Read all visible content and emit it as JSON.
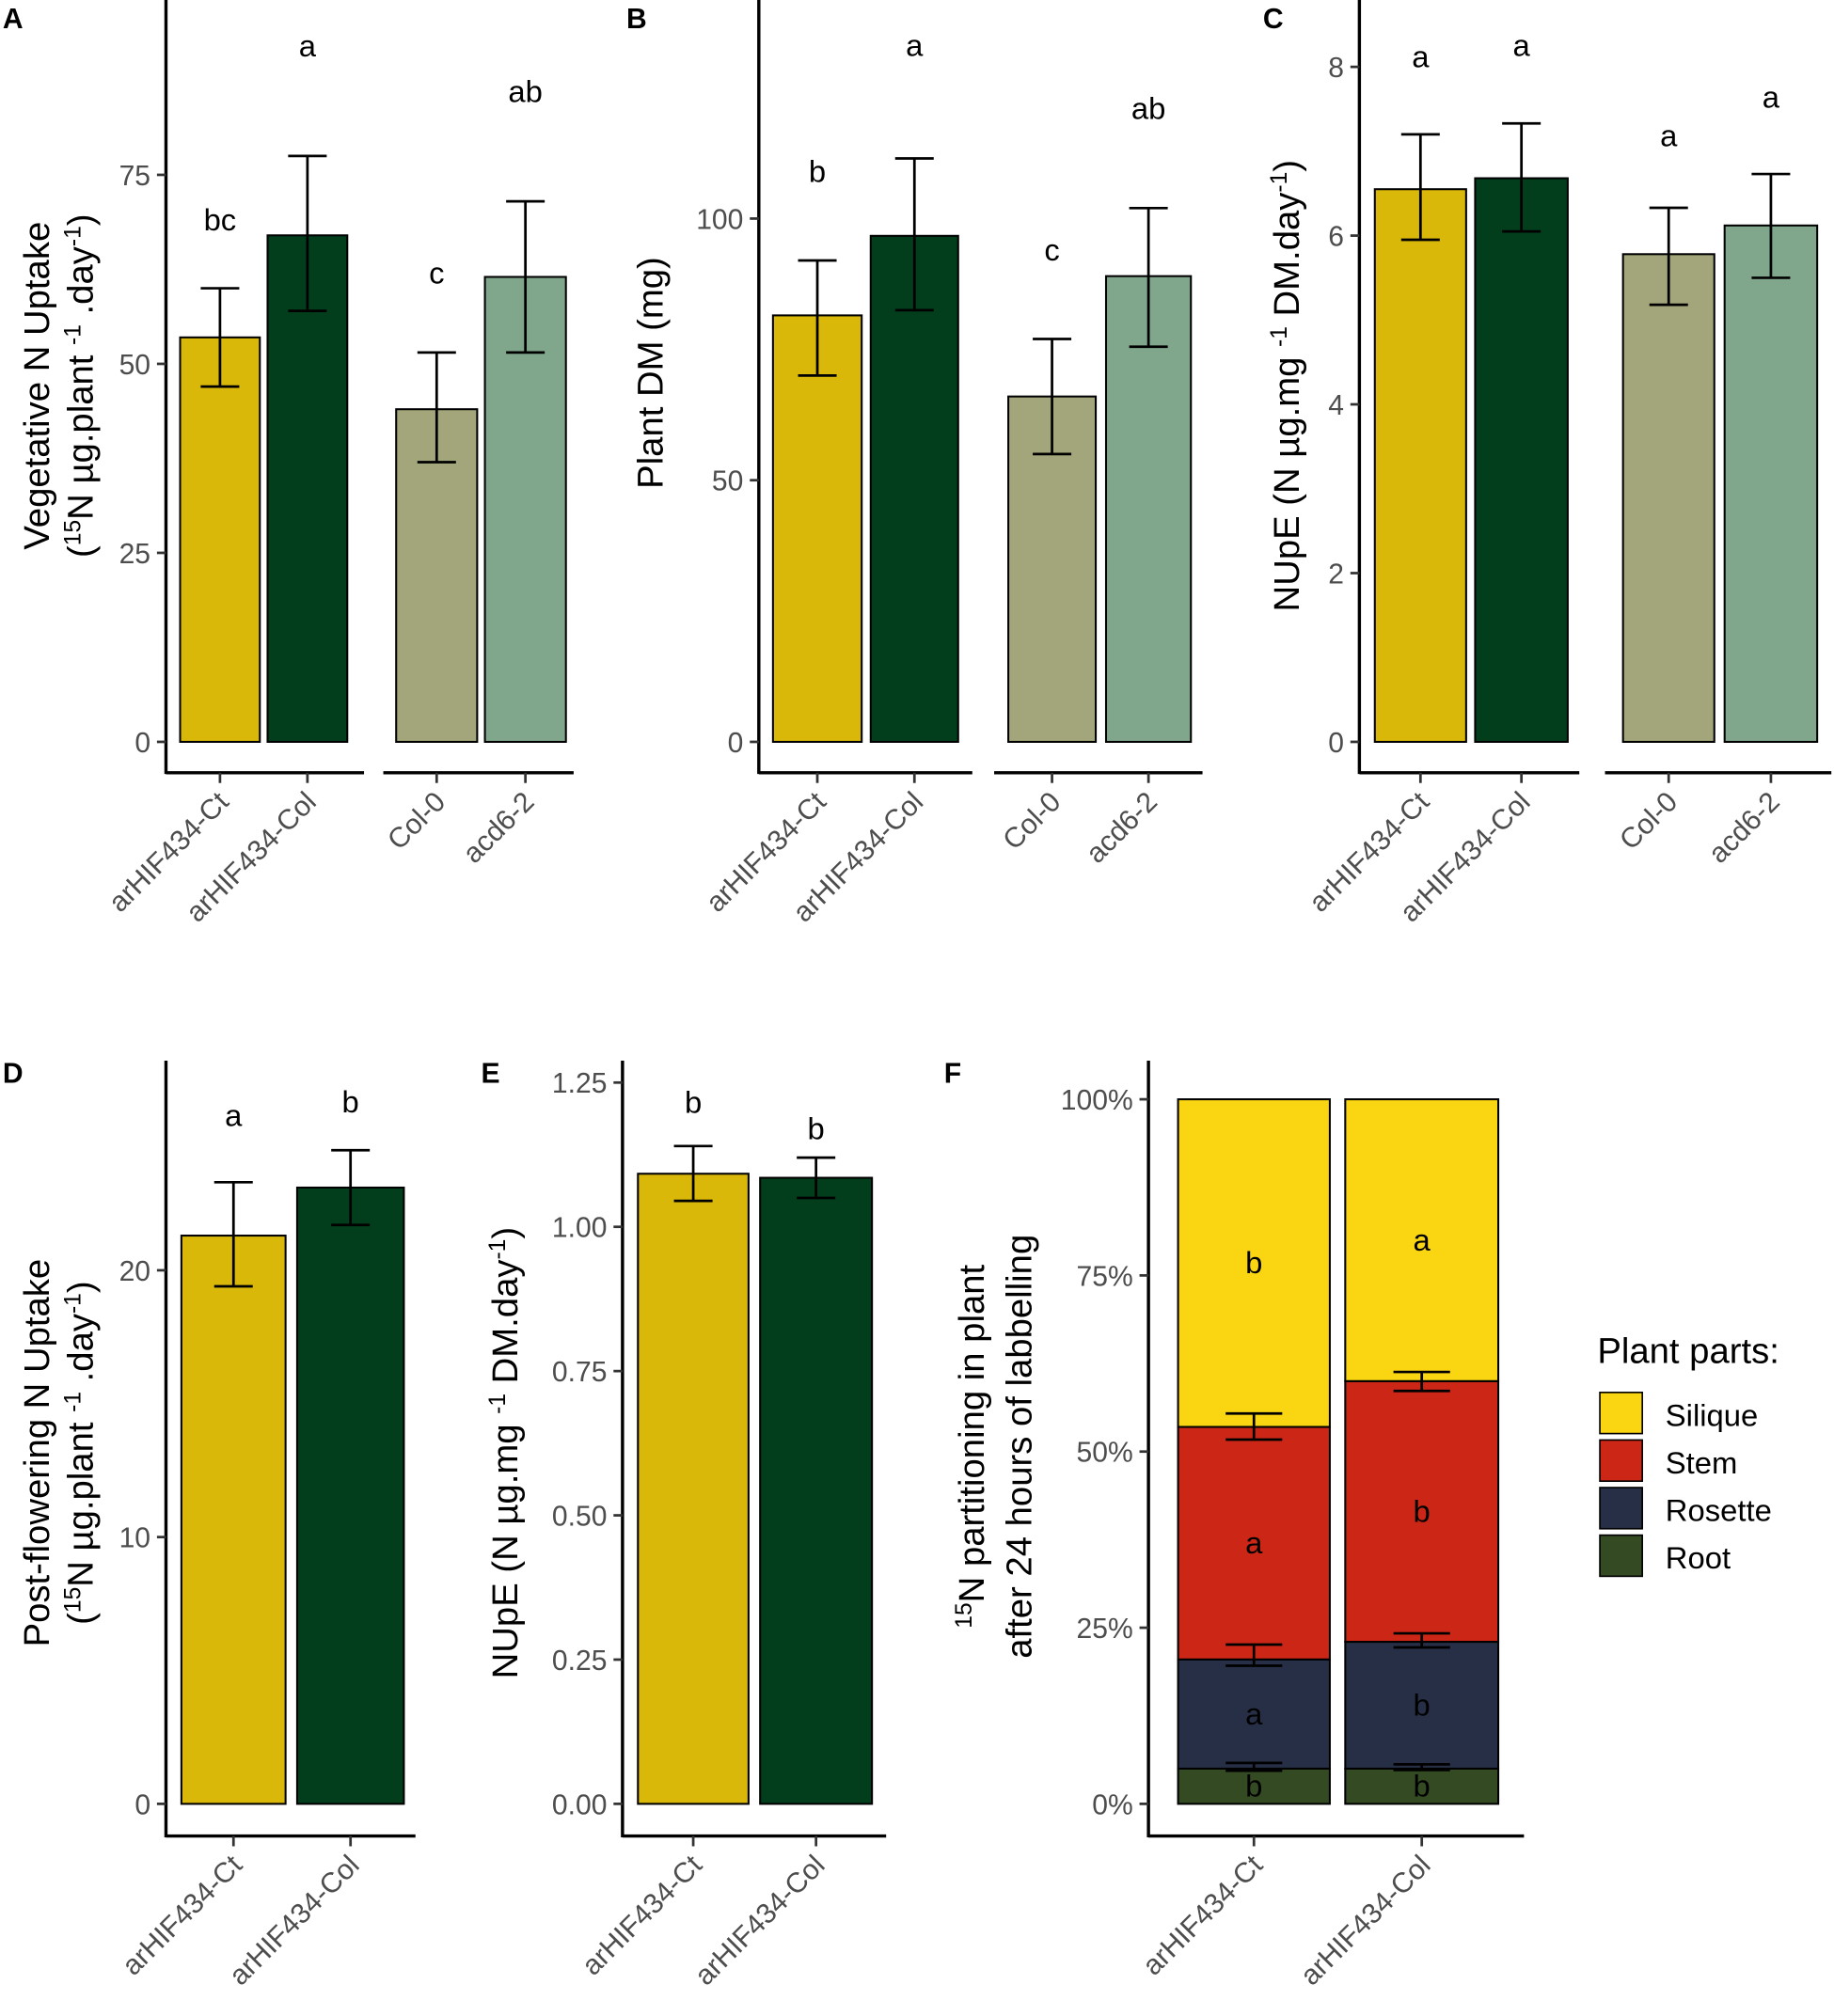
{
  "colors": {
    "arHIF434-Ct": "#D9B80A",
    "arHIF434-Col": "#023E1C",
    "Col-0": "#A3A57A",
    "acd6-2": "#80A78C"
  },
  "chart_data": [
    {
      "panel": "A",
      "type": "bar",
      "ylabel": [
        [
          {
            "t": "Vegetative N Uptake"
          }
        ],
        [
          {
            "t": "("
          },
          {
            "t": "15",
            "sup": true
          },
          {
            "t": "N µg.plant "
          },
          {
            "t": "-1",
            "sup": true
          },
          {
            "t": " .day"
          },
          {
            "t": "-1",
            "sup": true
          },
          {
            "t": ")"
          }
        ]
      ],
      "ylim": [
        0,
        98
      ],
      "yticks": [
        0,
        25,
        50,
        75
      ],
      "groups": [
        [
          {
            "category": "arHIF434-Ct",
            "value": 53.5,
            "err": [
              47,
              60
            ],
            "letter": "bc",
            "letter_y": 69
          },
          {
            "category": "arHIF434-Col",
            "value": 67,
            "err": [
              57,
              77.5
            ],
            "letter": "a",
            "letter_y": 92
          }
        ],
        [
          {
            "category": "Col-0",
            "value": 44,
            "err": [
              37,
              51.5
            ],
            "letter": "c",
            "letter_y": 62
          },
          {
            "category": "acd6-2",
            "value": 61.5,
            "err": [
              51.5,
              71.5
            ],
            "letter": "ab",
            "letter_y": 86
          }
        ]
      ]
    },
    {
      "panel": "B",
      "type": "bar",
      "ylabel": [
        [
          {
            "t": "Plant DM (mg)"
          }
        ]
      ],
      "ylim": [
        0,
        141
      ],
      "yticks": [
        0,
        50,
        100
      ],
      "groups": [
        [
          {
            "category": "arHIF434-Ct",
            "value": 81.5,
            "err": [
              70,
              92
            ],
            "letter": "b",
            "letter_y": 109
          },
          {
            "category": "arHIF434-Col",
            "value": 96.7,
            "err": [
              82.5,
              111.5
            ],
            "letter": "a",
            "letter_y": 133
          }
        ],
        [
          {
            "category": "Col-0",
            "value": 66,
            "err": [
              55,
              77
            ],
            "letter": "c",
            "letter_y": 94
          },
          {
            "category": "acd6-2",
            "value": 89,
            "err": [
              75.5,
              102
            ],
            "letter": "ab",
            "letter_y": 121
          }
        ]
      ]
    },
    {
      "panel": "C",
      "type": "bar",
      "ylabel": [
        [
          {
            "t": "NUpE (N µg.mg "
          },
          {
            "t": "-1",
            "sup": true
          },
          {
            "t": " DM.day"
          },
          {
            "t": "-1",
            "sup": true
          },
          {
            "t": ")"
          }
        ]
      ],
      "ylim": [
        0,
        8.75
      ],
      "yticks": [
        0,
        2,
        4,
        6,
        8
      ],
      "groups": [
        [
          {
            "category": "arHIF434-Ct",
            "value": 6.55,
            "err": [
              5.95,
              7.2
            ],
            "letter": "a",
            "letter_y": 8.12
          },
          {
            "category": "arHIF434-Col",
            "value": 6.68,
            "err": [
              6.05,
              7.33
            ],
            "letter": "a",
            "letter_y": 8.25
          }
        ],
        [
          {
            "category": "Col-0",
            "value": 5.78,
            "err": [
              5.18,
              6.33
            ],
            "letter": "a",
            "letter_y": 7.18
          },
          {
            "category": "acd6-2",
            "value": 6.12,
            "err": [
              5.5,
              6.73
            ],
            "letter": "a",
            "letter_y": 7.64
          }
        ]
      ]
    },
    {
      "panel": "D",
      "type": "bar",
      "ylabel": [
        [
          {
            "t": "Post-flowering N Uptake"
          }
        ],
        [
          {
            "t": "("
          },
          {
            "t": "15",
            "sup": true
          },
          {
            "t": "N µg.plant "
          },
          {
            "t": "-1",
            "sup": true
          },
          {
            "t": " .day"
          },
          {
            "t": "-1",
            "sup": true
          },
          {
            "t": ")"
          }
        ]
      ],
      "ylim": [
        0,
        27.4
      ],
      "yticks": [
        0,
        10,
        20
      ],
      "groups": [
        [
          {
            "category": "arHIF434-Ct",
            "value": 21.3,
            "err": [
              19.4,
              23.3
            ],
            "letter": "a",
            "letter_y": 25.8
          },
          {
            "category": "arHIF434-Col",
            "value": 23.1,
            "err": [
              21.7,
              24.5
            ],
            "letter": "b",
            "letter_y": 26.3
          }
        ]
      ]
    },
    {
      "panel": "E",
      "type": "bar",
      "ylabel": [
        [
          {
            "t": "NUpE (N µg.mg "
          },
          {
            "t": "-1",
            "sup": true
          },
          {
            "t": " DM.day"
          },
          {
            "t": "-1",
            "sup": true
          },
          {
            "t": ")"
          }
        ]
      ],
      "ylim": [
        0,
        1.29
      ],
      "yticks": [
        0,
        0.25,
        0.5,
        0.75,
        1,
        1.25
      ],
      "ytick_labels": [
        "0.00",
        "0.25",
        "0.50",
        "0.75",
        "1.00",
        "1.25"
      ],
      "groups": [
        [
          {
            "category": "arHIF434-Ct",
            "value": 1.092,
            "err": [
              1.045,
              1.14
            ],
            "letter": "b",
            "letter_y": 1.215
          },
          {
            "category": "arHIF434-Col",
            "value": 1.085,
            "err": [
              1.05,
              1.12
            ],
            "letter": "b",
            "letter_y": 1.17
          }
        ]
      ]
    },
    {
      "panel": "F",
      "type": "stacked-bar",
      "ylabel": [
        [
          {
            "t": "15",
            "sup": true
          },
          {
            "t": "N partitioning in plant"
          }
        ],
        [
          {
            "t": "after 24 hours of labbelling"
          }
        ]
      ],
      "ylim": [
        0,
        100
      ],
      "yticks": [
        0,
        25,
        50,
        75,
        100
      ],
      "ytick_labels": [
        "0%",
        "25%",
        "50%",
        "75%",
        "100%"
      ],
      "legend": {
        "title": "Plant parts:",
        "position": "right",
        "entries": [
          {
            "name": "Silique",
            "color": "#FAD612"
          },
          {
            "name": "Stem",
            "color": "#CC2616"
          },
          {
            "name": "Rosette",
            "color": "#262F46"
          },
          {
            "name": "Root",
            "color": "#344A23"
          }
        ]
      },
      "categories": [
        "arHIF434-Ct",
        "arHIF434-Col"
      ],
      "series": [
        {
          "name": "Root",
          "values": [
            5,
            5
          ],
          "letters": [
            "b",
            "b"
          ],
          "err_top": [
            [
              4.7,
              5.8
            ],
            [
              4.8,
              5.6
            ]
          ]
        },
        {
          "name": "Rosette",
          "values": [
            15.5,
            18
          ],
          "letters": [
            "a",
            "b"
          ],
          "err_top": [
            [
              19.6,
              22.6
            ],
            [
              22.2,
              24.2
            ]
          ]
        },
        {
          "name": "Stem",
          "values": [
            33,
            37
          ],
          "letters": [
            "a",
            "b"
          ],
          "err_top": [
            [
              51.7,
              55.4
            ],
            [
              58.6,
              61.3
            ]
          ]
        },
        {
          "name": "Silique",
          "values": [
            46.5,
            40
          ],
          "letters": [
            "b",
            "a"
          ],
          "err_top": null
        }
      ]
    }
  ]
}
